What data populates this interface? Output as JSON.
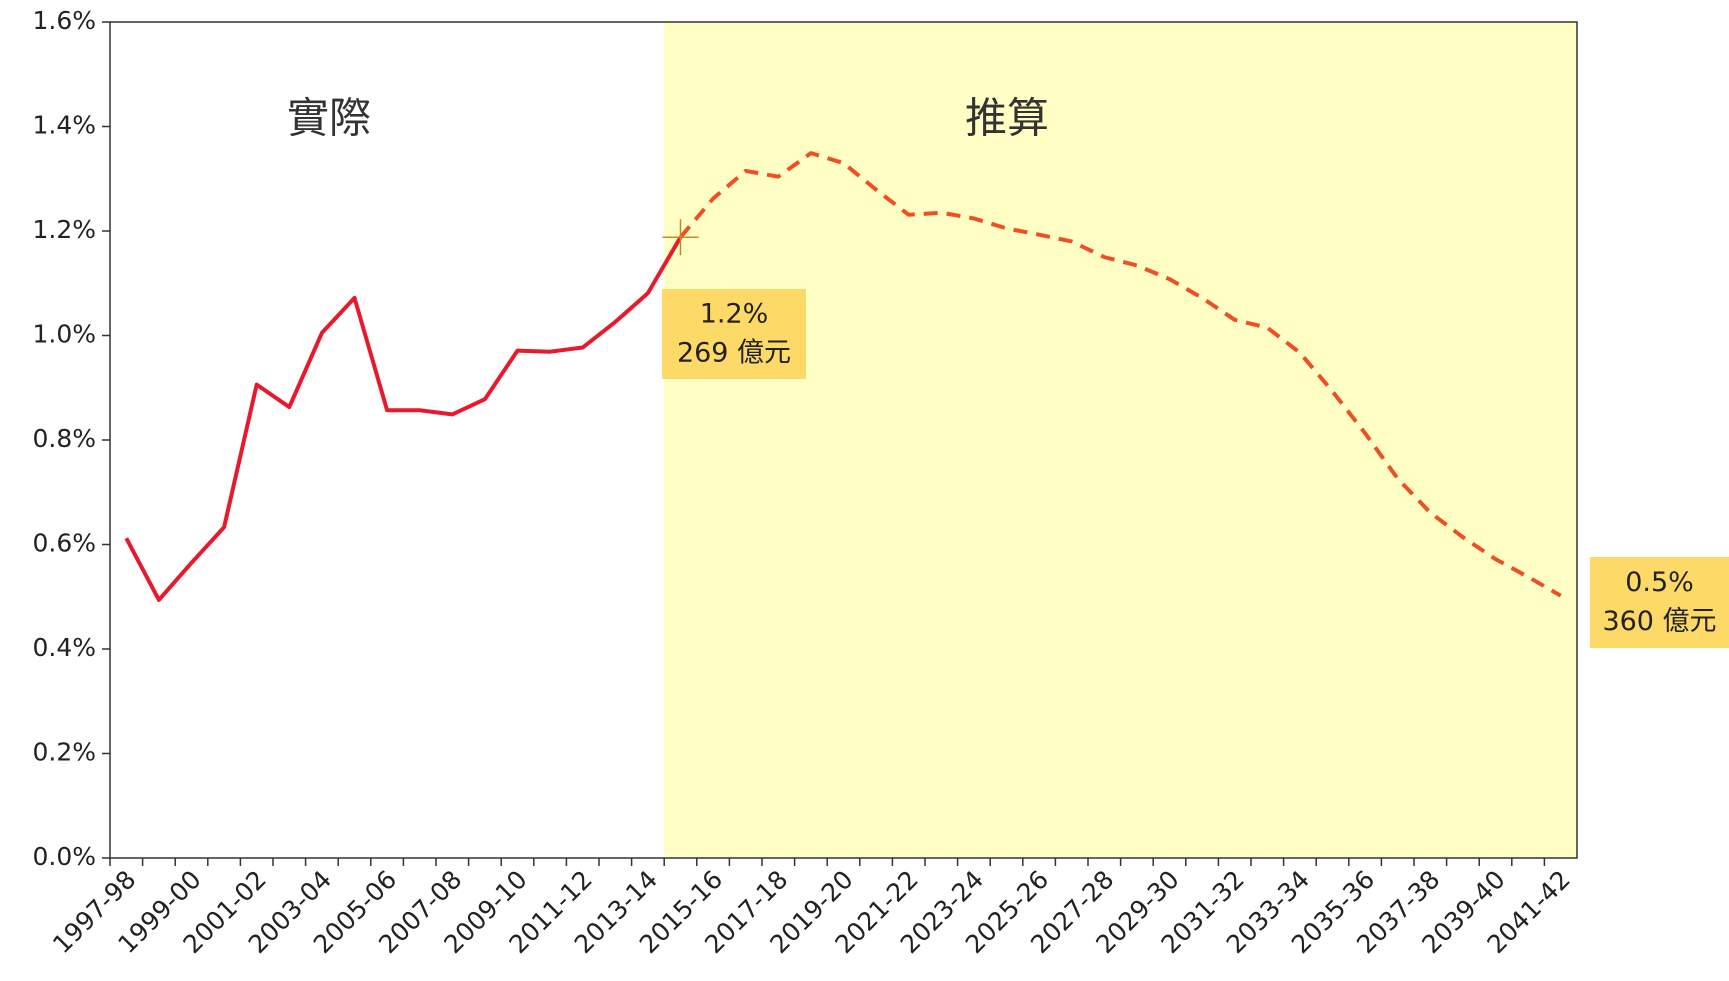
{
  "chart_data": {
    "type": "line",
    "categories": [
      "1997-98",
      null,
      "1999-00",
      null,
      "2001-02",
      null,
      "2003-04",
      null,
      "2005-06",
      null,
      "2007-08",
      null,
      "2009-10",
      null,
      "2011-12",
      null,
      "2013-14",
      null,
      "2015-16",
      null,
      "2017-18",
      null,
      "2019-20",
      null,
      "2021-22",
      null,
      "2023-24",
      null,
      "2025-26",
      null,
      "2027-28",
      null,
      "2029-30",
      null,
      "2031-32",
      null,
      "2033-34",
      null,
      "2035-36",
      null,
      "2037-38",
      null,
      "2039-40",
      null,
      "2041-42"
    ],
    "series": [
      {
        "name": "實際",
        "color": "#e8192c",
        "line_style": "solid",
        "values": [
          0.612,
          0.494,
          0.565,
          0.633,
          0.906,
          0.863,
          1.005,
          1.072,
          0.857,
          0.857,
          0.849,
          0.878,
          0.971,
          0.969,
          0.977,
          1.026,
          1.081,
          1.188,
          null,
          null,
          null,
          null,
          null,
          null,
          null,
          null,
          null,
          null,
          null,
          null,
          null,
          null,
          null,
          null,
          null,
          null,
          null,
          null,
          null,
          null,
          null,
          null,
          null,
          null,
          null
        ]
      },
      {
        "name": "推算",
        "color": "#f04e23",
        "line_style": "dashed",
        "shaded": true,
        "shade_color": "#ffffc5",
        "values": [
          null,
          null,
          null,
          null,
          null,
          null,
          null,
          null,
          null,
          null,
          null,
          null,
          null,
          null,
          null,
          null,
          null,
          1.188,
          1.262,
          1.315,
          1.304,
          1.349,
          1.33,
          1.279,
          1.231,
          1.235,
          1.224,
          1.205,
          1.193,
          1.18,
          1.15,
          1.134,
          1.108,
          1.072,
          1.03,
          1.015,
          0.967,
          0.893,
          0.813,
          0.726,
          0.661,
          0.614,
          0.572,
          0.538,
          0.502
        ]
      }
    ],
    "ylim": [
      0,
      1.6
    ],
    "yticks": [
      {
        "value": 0,
        "label": "0.0%"
      },
      {
        "value": 0.2,
        "label": "0.2%"
      },
      {
        "value": 0.4,
        "label": "0.4%"
      },
      {
        "value": 0.6,
        "label": "0.6%"
      },
      {
        "value": 0.8,
        "label": "0.8%"
      },
      {
        "value": 1.0,
        "label": "1.0%"
      },
      {
        "value": 1.2,
        "label": "1.2%"
      },
      {
        "value": 1.4,
        "label": "1.4%"
      },
      {
        "value": 1.6,
        "label": "1.6%"
      }
    ],
    "grid": false,
    "annotations": [
      {
        "lines": [
          "1.2%",
          "269 億元"
        ],
        "color": "#fdd967"
      },
      {
        "lines": [
          "0.5%",
          "360 億元"
        ],
        "color": "#fdd967"
      }
    ]
  }
}
